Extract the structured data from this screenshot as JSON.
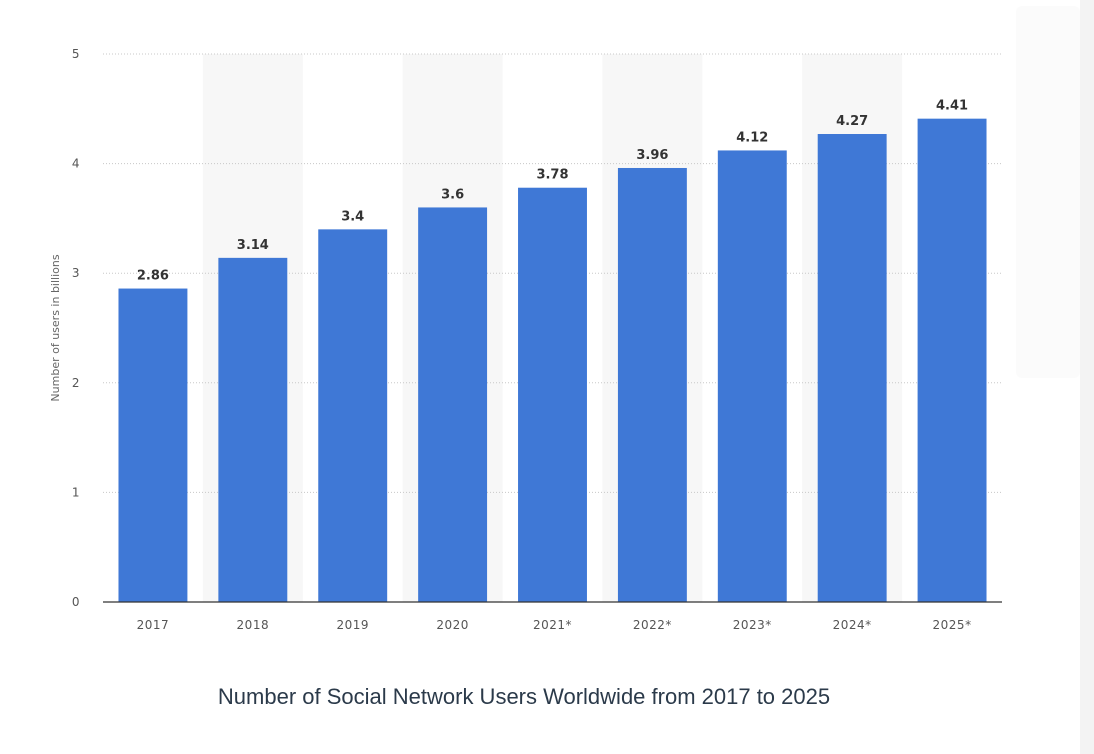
{
  "chart_data": {
    "type": "bar",
    "title": "Number of Social Network Users Worldwide from 2017 to 2025",
    "xlabel": "",
    "ylabel": "Number of users in billions",
    "categories": [
      "2017",
      "2018",
      "2019",
      "2020",
      "2021*",
      "2022*",
      "2023*",
      "2024*",
      "2025*"
    ],
    "values": [
      2.86,
      3.14,
      3.4,
      3.6,
      3.78,
      3.96,
      4.12,
      4.27,
      4.41
    ],
    "value_labels": [
      "2.86",
      "3.14",
      "3.4",
      "3.6",
      "3.78",
      "3.96",
      "4.12",
      "4.27",
      "4.41"
    ],
    "ylim": [
      0,
      5
    ],
    "yticks": [
      "0",
      "1",
      "2",
      "3",
      "4",
      "5"
    ],
    "grid": true,
    "bar_color": "#3f78d6",
    "band_color": "#f7f7f7"
  }
}
